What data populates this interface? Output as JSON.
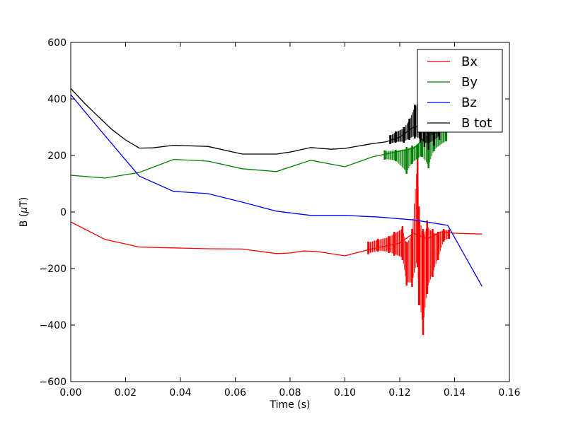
{
  "chart_data": {
    "type": "line",
    "title": "",
    "xlabel": "Time (s)",
    "ylabel_prefix": "B (",
    "ylabel_mu": "μ",
    "ylabel_suffix": "T)",
    "xlim": [
      0.0,
      0.16
    ],
    "ylim": [
      -600,
      600
    ],
    "xticks": [
      0.0,
      0.02,
      0.04,
      0.06,
      0.08,
      0.1,
      0.12,
      0.14,
      0.16
    ],
    "xtick_labels": [
      "0.00",
      "0.02",
      "0.04",
      "0.06",
      "0.08",
      "0.10",
      "0.12",
      "0.14",
      "0.16"
    ],
    "yticks": [
      -600,
      -400,
      -200,
      0,
      200,
      400,
      600
    ],
    "ytick_labels": [
      "−600",
      "−400",
      "−200",
      "0",
      "200",
      "400",
      "600"
    ],
    "grid": false,
    "legend_position": "top-right",
    "series": [
      {
        "name": "Bx",
        "color": "#ff0000",
        "x": [
          0.0,
          0.0125,
          0.025,
          0.0375,
          0.05,
          0.0625,
          0.075,
          0.08,
          0.085,
          0.09,
          0.1,
          0.11,
          0.12,
          0.125,
          0.13,
          0.135,
          0.14,
          0.15
        ],
        "y": [
          -35,
          -97,
          -124,
          -127,
          -130,
          -131,
          -147,
          -145,
          -138,
          -140,
          -155,
          -130,
          -110,
          -75,
          -95,
          -70,
          -75,
          -78
        ],
        "spikes": [
          {
            "x": 0.1285,
            "lo": -435,
            "hi": -60
          },
          {
            "x": 0.1265,
            "lo": -195,
            "hi": 218
          },
          {
            "x": 0.1225,
            "lo": -260,
            "hi": -105
          },
          {
            "x": 0.1245,
            "lo": -265,
            "hi": -60
          },
          {
            "x": 0.127,
            "lo": -330,
            "hi": 20
          },
          {
            "x": 0.13,
            "lo": -290,
            "hi": -30
          },
          {
            "x": 0.132,
            "lo": -230,
            "hi": -60
          },
          {
            "x": 0.134,
            "lo": -170,
            "hi": -70
          },
          {
            "x": 0.116,
            "lo": -145,
            "hi": -85
          },
          {
            "x": 0.118,
            "lo": -155,
            "hi": -70
          },
          {
            "x": 0.112,
            "lo": -140,
            "hi": -95
          },
          {
            "x": 0.1085,
            "lo": -150,
            "hi": -105
          },
          {
            "x": 0.121,
            "lo": -170,
            "hi": -50
          },
          {
            "x": 0.136,
            "lo": -105,
            "hi": -60
          },
          {
            "x": 0.138,
            "lo": -95,
            "hi": -62
          }
        ]
      },
      {
        "name": "By",
        "color": "#008000",
        "x": [
          0.0,
          0.0125,
          0.025,
          0.0375,
          0.05,
          0.0625,
          0.075,
          0.0875,
          0.1,
          0.11,
          0.12,
          0.125,
          0.13,
          0.135
        ],
        "y": [
          130,
          120,
          140,
          186,
          180,
          153,
          143,
          183,
          160,
          195,
          215,
          225,
          270,
          285
        ],
        "spikes": [
          {
            "x": 0.1225,
            "lo": 135,
            "hi": 230
          },
          {
            "x": 0.1245,
            "lo": 170,
            "hi": 235
          },
          {
            "x": 0.1265,
            "lo": 185,
            "hi": 240
          },
          {
            "x": 0.128,
            "lo": 195,
            "hi": 260
          },
          {
            "x": 0.1305,
            "lo": 155,
            "hi": 280
          },
          {
            "x": 0.1325,
            "lo": 215,
            "hi": 290
          },
          {
            "x": 0.1185,
            "lo": 180,
            "hi": 220
          },
          {
            "x": 0.1145,
            "lo": 185,
            "hi": 218
          },
          {
            "x": 0.137,
            "lo": 250,
            "hi": 295
          }
        ]
      },
      {
        "name": "Bz",
        "color": "#0000ff",
        "x": [
          0.0,
          0.0125,
          0.025,
          0.0375,
          0.05,
          0.0625,
          0.075,
          0.0875,
          0.1,
          0.1125,
          0.125,
          0.1375,
          0.15
        ],
        "y": [
          415,
          270,
          127,
          73,
          65,
          35,
          3,
          -12,
          -12,
          -18,
          -28,
          -47,
          -263
        ],
        "spikes": []
      },
      {
        "name": "B tot",
        "color": "#000000",
        "x": [
          0.0,
          0.005,
          0.01,
          0.015,
          0.02,
          0.025,
          0.03,
          0.0375,
          0.05,
          0.0625,
          0.075,
          0.08,
          0.0875,
          0.095,
          0.1,
          0.11,
          0.115,
          0.12,
          0.125,
          0.128,
          0.13,
          0.135,
          0.137
        ],
        "y": [
          437,
          385,
          338,
          292,
          255,
          226,
          227,
          236,
          232,
          205,
          205,
          212,
          228,
          222,
          225,
          242,
          248,
          265,
          300,
          305,
          278,
          285,
          290
        ],
        "spikes": [
          {
            "x": 0.1215,
            "lo": 245,
            "hi": 300
          },
          {
            "x": 0.1235,
            "lo": 255,
            "hi": 330
          },
          {
            "x": 0.1255,
            "lo": 260,
            "hi": 380
          },
          {
            "x": 0.1275,
            "lo": 245,
            "hi": 410
          },
          {
            "x": 0.129,
            "lo": 230,
            "hi": 440
          },
          {
            "x": 0.1305,
            "lo": 220,
            "hi": 525
          },
          {
            "x": 0.1325,
            "lo": 235,
            "hi": 490
          },
          {
            "x": 0.1345,
            "lo": 255,
            "hi": 470
          },
          {
            "x": 0.1185,
            "lo": 245,
            "hi": 285
          },
          {
            "x": 0.1165,
            "lo": 240,
            "hi": 272
          }
        ]
      }
    ]
  }
}
